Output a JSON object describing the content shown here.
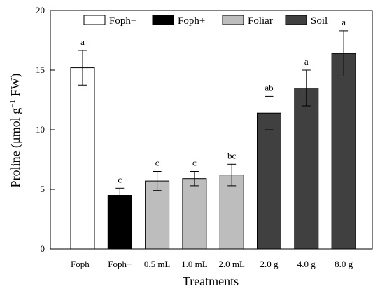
{
  "chart_data": {
    "type": "bar",
    "title": "",
    "xlabel": "Treatments",
    "ylabel_parts": [
      "Proline (μmol g",
      "−1",
      " FW)"
    ],
    "ylim": [
      0,
      20
    ],
    "yticks": [
      0,
      5,
      10,
      15,
      20
    ],
    "yticks_labels": [
      "0",
      "5",
      "10",
      "15",
      "20"
    ],
    "categories": [
      "Foph−",
      "Foph+",
      "0.5 mL",
      "1.0 mL",
      "2.0 mL",
      "2.0 g",
      "4.0 g",
      "8.0 g"
    ],
    "values": [
      15.2,
      4.5,
      5.7,
      5.9,
      6.2,
      11.4,
      13.5,
      16.4
    ],
    "errors": [
      1.45,
      0.6,
      0.8,
      0.6,
      0.9,
      1.4,
      1.5,
      1.9
    ],
    "significance": [
      "a",
      "c",
      "c",
      "c",
      "bc",
      "ab",
      "a",
      "a"
    ],
    "groups": [
      0,
      1,
      2,
      2,
      2,
      3,
      3,
      3
    ],
    "legend": [
      {
        "name": "Foph−",
        "color": "#ffffff"
      },
      {
        "name": "Foph+",
        "color": "#000000"
      },
      {
        "name": "Foliar",
        "color": "#bdbdbd"
      },
      {
        "name": "Soil",
        "color": "#404040"
      }
    ],
    "legend_position": "top",
    "grid": false
  }
}
